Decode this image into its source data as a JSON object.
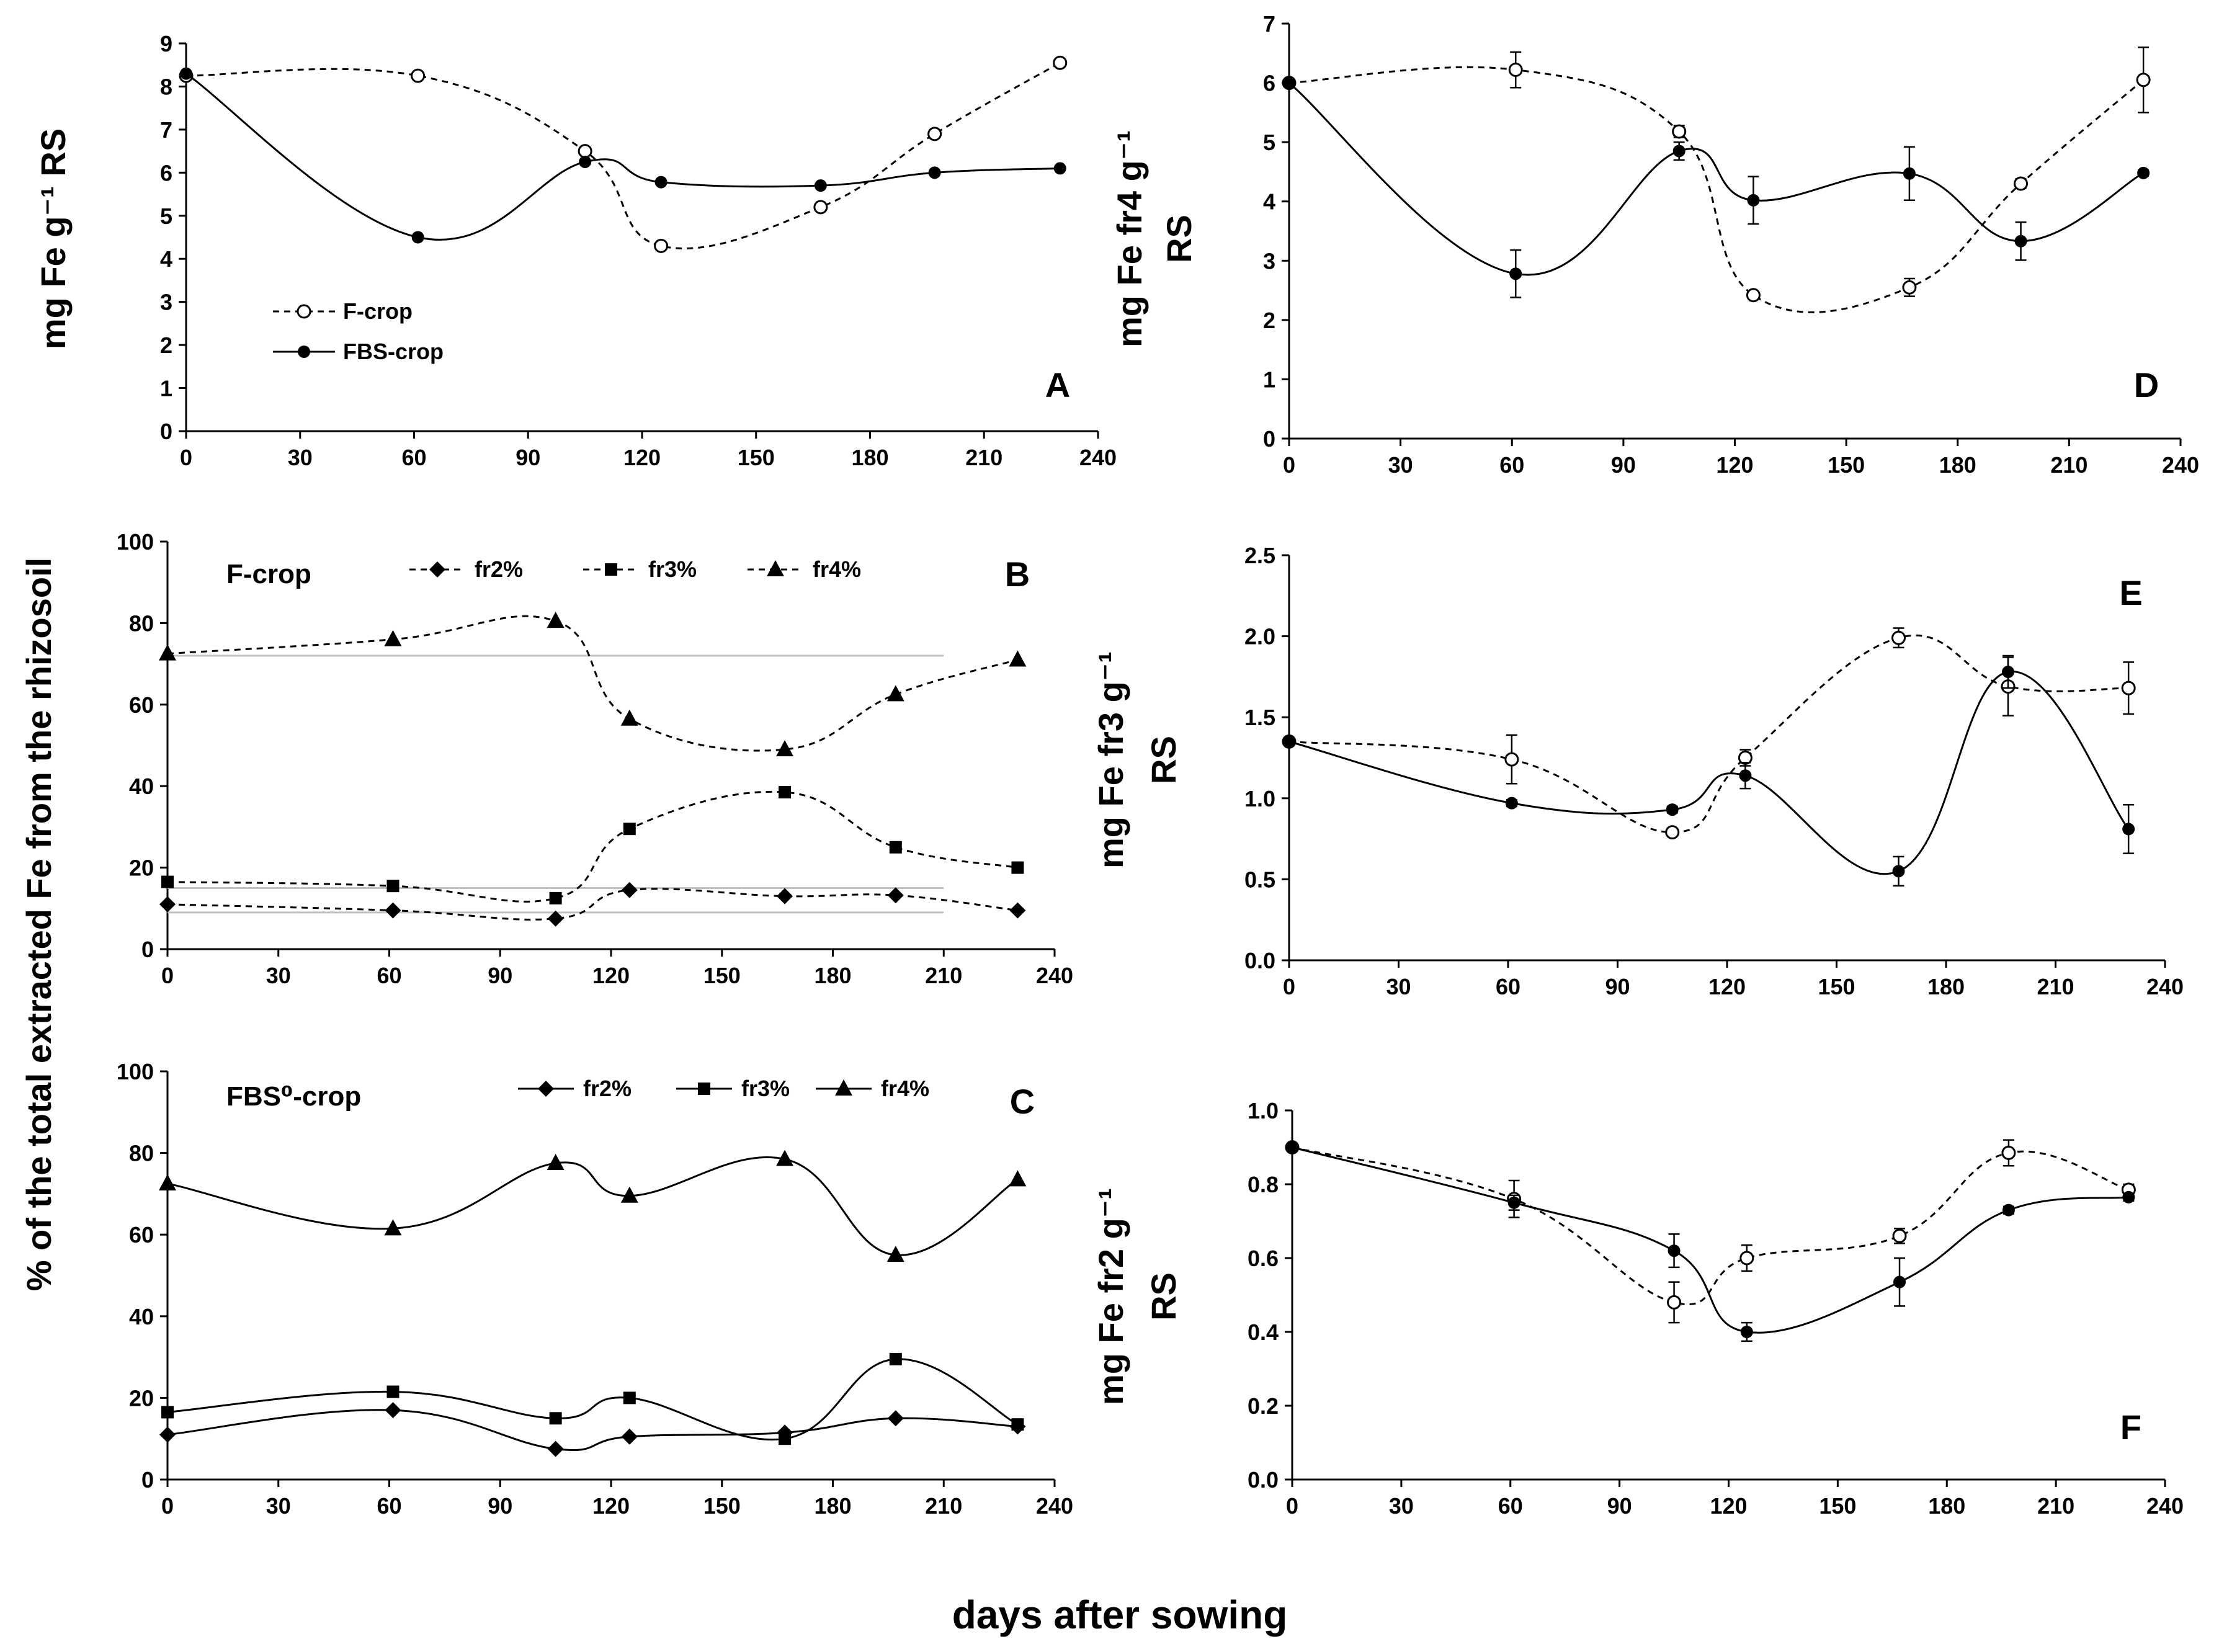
{
  "figure": {
    "x_axis_label": "days after sowing",
    "shared_y_label_BC": "% of the total extracted  Fe  from the rhizosoil"
  },
  "chart_data": [
    {
      "id": "A",
      "type": "line",
      "panel_label": "A",
      "ylabel": "mg Fe  g⁻¹ RS",
      "xlim": [
        0,
        240
      ],
      "ylim": [
        0,
        9
      ],
      "xticks": [
        "0",
        "30",
        "60",
        "90",
        "120",
        "150",
        "180",
        "210",
        "240"
      ],
      "yticks": [
        "0",
        "1",
        "2",
        "3",
        "4",
        "5",
        "6",
        "7",
        "8",
        "9"
      ],
      "legend": [
        "F-crop",
        "FBS-crop"
      ],
      "series": [
        {
          "name": "F-crop",
          "style": "dashed",
          "marker": "open-circle",
          "x": [
            0,
            61,
            105,
            125,
            167,
            197,
            230
          ],
          "y": [
            8.25,
            8.25,
            6.5,
            4.3,
            5.2,
            6.9,
            8.55
          ]
        },
        {
          "name": "FBS-crop",
          "style": "solid",
          "marker": "circle",
          "x": [
            0,
            61,
            105,
            125,
            167,
            197,
            230
          ],
          "y": [
            8.3,
            4.5,
            6.25,
            5.78,
            5.7,
            6.0,
            6.1
          ]
        }
      ]
    },
    {
      "id": "D",
      "type": "line",
      "panel_label": "D",
      "ylabel_lines": [
        "mg Fe fr4  g⁻¹",
        "RS"
      ],
      "xlim": [
        0,
        240
      ],
      "ylim": [
        0,
        7
      ],
      "xticks": [
        "0",
        "30",
        "60",
        "90",
        "120",
        "150",
        "180",
        "210",
        "240"
      ],
      "yticks": [
        "0",
        "1",
        "2",
        "3",
        "4",
        "5",
        "6",
        "7"
      ],
      "series": [
        {
          "name": "F-crop",
          "style": "dashed",
          "marker": "open-circle",
          "x": [
            0,
            61,
            105,
            125,
            167,
            197,
            230
          ],
          "y": [
            6.0,
            6.22,
            5.18,
            2.42,
            2.55,
            4.3,
            6.05
          ],
          "err": [
            0,
            0.3,
            0.1,
            0.05,
            0.15,
            0.08,
            0.55
          ]
        },
        {
          "name": "FBS-crop",
          "style": "solid",
          "marker": "circle",
          "x": [
            0,
            61,
            105,
            125,
            167,
            197,
            230
          ],
          "y": [
            6.0,
            2.78,
            4.85,
            4.02,
            4.47,
            3.33,
            4.48
          ],
          "err": [
            0,
            0.4,
            0.15,
            0.4,
            0.45,
            0.32,
            0.05
          ]
        }
      ]
    },
    {
      "id": "B",
      "type": "line",
      "panel_label": "B",
      "title": "F-crop",
      "xlim": [
        0,
        240
      ],
      "ylim": [
        0,
        100
      ],
      "xticks": [
        "0",
        "30",
        "60",
        "90",
        "120",
        "150",
        "180",
        "210",
        "240"
      ],
      "yticks": [
        "0",
        "20",
        "40",
        "60",
        "80",
        "100"
      ],
      "legend": [
        "fr2%",
        "fr3%",
        "fr4%"
      ],
      "reference_lines": [
        72,
        15,
        9
      ],
      "series": [
        {
          "name": "fr2%",
          "style": "dashed",
          "marker": "diamond",
          "x": [
            0,
            61,
            105,
            125,
            167,
            197,
            230
          ],
          "y": [
            11,
            9.5,
            7.5,
            14.5,
            13,
            13.2,
            9.5
          ]
        },
        {
          "name": "fr3%",
          "style": "dashed",
          "marker": "square",
          "x": [
            0,
            61,
            105,
            125,
            167,
            197,
            230
          ],
          "y": [
            16.5,
            15.5,
            12.5,
            29.5,
            38.5,
            25,
            20
          ]
        },
        {
          "name": "fr4%",
          "style": "dashed",
          "marker": "triangle",
          "x": [
            0,
            61,
            105,
            125,
            167,
            197,
            230
          ],
          "y": [
            72.5,
            76,
            80.5,
            56.5,
            49,
            62.5,
            71
          ]
        }
      ]
    },
    {
      "id": "E",
      "type": "line",
      "panel_label": "E",
      "ylabel_lines": [
        "mg Fe fr3  g⁻¹",
        "RS"
      ],
      "xlim": [
        0,
        240
      ],
      "ylim": [
        0,
        2.5
      ],
      "xticks": [
        "0",
        "30",
        "60",
        "90",
        "120",
        "150",
        "180",
        "210",
        "240"
      ],
      "yticks": [
        "0.0",
        "0.5",
        "1.0",
        "1.5",
        "2.0",
        "2.5"
      ],
      "series": [
        {
          "name": "F-crop",
          "style": "dashed",
          "marker": "open-circle",
          "x": [
            0,
            61,
            105,
            125,
            167,
            197,
            230
          ],
          "y": [
            1.35,
            1.24,
            0.79,
            1.25,
            1.99,
            1.69,
            1.68
          ],
          "err": [
            0,
            0.15,
            0.02,
            0.05,
            0.06,
            0.18,
            0.16
          ]
        },
        {
          "name": "FBS-crop",
          "style": "solid",
          "marker": "circle",
          "x": [
            0,
            61,
            105,
            125,
            167,
            197,
            230
          ],
          "y": [
            1.35,
            0.97,
            0.93,
            1.14,
            0.55,
            1.78,
            0.81
          ],
          "err": [
            0,
            0.02,
            0.02,
            0.08,
            0.09,
            0.1,
            0.15
          ]
        }
      ]
    },
    {
      "id": "C",
      "type": "line",
      "panel_label": "C",
      "title": "FBS⁰-crop",
      "xlim": [
        0,
        240
      ],
      "ylim": [
        0,
        100
      ],
      "xticks": [
        "0",
        "30",
        "60",
        "90",
        "120",
        "150",
        "180",
        "210",
        "240"
      ],
      "yticks": [
        "0",
        "20",
        "40",
        "60",
        "80",
        "100"
      ],
      "legend": [
        "fr2%",
        "fr3%",
        "fr4%"
      ],
      "series": [
        {
          "name": "fr2%",
          "style": "solid",
          "marker": "diamond",
          "x": [
            0,
            61,
            105,
            125,
            167,
            197,
            230
          ],
          "y": [
            11,
            17,
            7.5,
            10.5,
            11.5,
            15,
            13
          ]
        },
        {
          "name": "fr3%",
          "style": "solid",
          "marker": "square",
          "x": [
            0,
            61,
            105,
            125,
            167,
            197,
            230
          ],
          "y": [
            16.5,
            21.5,
            15,
            20,
            10,
            29.5,
            13.5
          ]
        },
        {
          "name": "fr4%",
          "style": "solid",
          "marker": "triangle",
          "x": [
            0,
            61,
            105,
            125,
            167,
            197,
            230
          ],
          "y": [
            72.5,
            61.5,
            77.5,
            69.5,
            78.5,
            55,
            73.5
          ]
        }
      ]
    },
    {
      "id": "F",
      "type": "line",
      "panel_label": "F",
      "ylabel_lines": [
        "mg Fe fr2  g⁻¹",
        "RS"
      ],
      "xlim": [
        0,
        240
      ],
      "ylim": [
        0,
        1.0
      ],
      "xticks": [
        "0",
        "30",
        "60",
        "90",
        "120",
        "150",
        "180",
        "210",
        "240"
      ],
      "yticks": [
        "0.0",
        "0.2",
        "0.4",
        "0.6",
        "0.8",
        "1.0"
      ],
      "series": [
        {
          "name": "F-crop",
          "style": "dashed",
          "marker": "open-circle",
          "x": [
            0,
            61,
            105,
            125,
            167,
            197,
            230
          ],
          "y": [
            0.9,
            0.76,
            0.48,
            0.6,
            0.66,
            0.885,
            0.785
          ],
          "err": [
            0,
            0.05,
            0.055,
            0.035,
            0.02,
            0.035,
            0.015
          ]
        },
        {
          "name": "FBS-crop",
          "style": "solid",
          "marker": "circle",
          "x": [
            0,
            61,
            105,
            125,
            167,
            197,
            230
          ],
          "y": [
            0.9,
            0.75,
            0.62,
            0.4,
            0.535,
            0.73,
            0.765
          ],
          "err": [
            0,
            0.02,
            0.045,
            0.025,
            0.065,
            0.01,
            0.01
          ]
        }
      ]
    }
  ]
}
